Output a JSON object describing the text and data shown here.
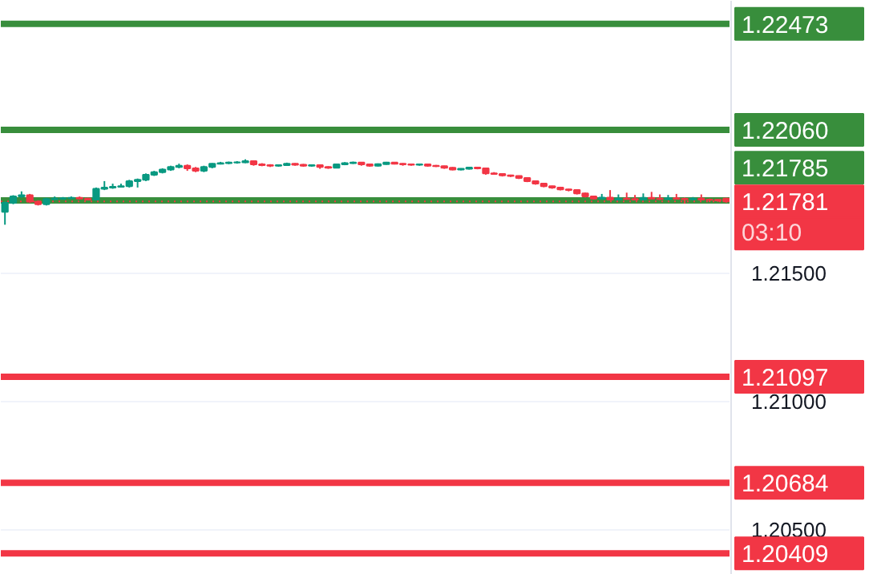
{
  "chart_data": {
    "type": "candlestick",
    "categories": [
      null,
      null,
      null,
      null,
      null,
      null,
      null,
      null,
      null,
      null,
      null,
      null,
      null,
      null,
      null,
      null,
      null,
      null,
      null,
      null,
      null,
      null,
      null,
      null,
      null,
      null,
      null,
      null,
      null,
      null,
      null,
      null,
      null,
      null,
      null,
      null,
      null,
      null,
      null,
      null,
      null,
      null,
      null,
      null,
      null,
      null,
      null,
      null,
      null,
      null,
      null,
      null,
      null,
      null,
      null,
      null,
      null,
      null,
      null,
      null,
      null,
      null,
      null,
      null,
      null,
      null,
      null,
      null,
      null,
      null,
      null,
      null,
      null,
      null,
      null,
      null,
      null,
      null,
      null,
      null,
      null,
      null,
      null,
      null,
      null,
      null,
      null,
      null
    ],
    "ohlc": [
      [
        1.2174,
        1.2178,
        1.2169,
        1.21775
      ],
      [
        1.21775,
        1.21805,
        1.2177,
        1.218
      ],
      [
        1.218,
        1.2182,
        1.21795,
        1.21805
      ],
      [
        1.21805,
        1.2181,
        1.21775,
        1.2178
      ],
      [
        1.2178,
        1.21785,
        1.21765,
        1.2177
      ],
      [
        1.2177,
        1.21795,
        1.21765,
        1.2179
      ],
      [
        1.2179,
        1.218,
        1.21785,
        1.21792
      ],
      [
        1.21792,
        1.21798,
        1.21788,
        1.21793
      ],
      [
        1.21793,
        1.218,
        1.2179,
        1.21795
      ],
      [
        1.21795,
        1.218,
        1.21788,
        1.21792
      ],
      [
        1.21792,
        1.21795,
        1.21785,
        1.21788
      ],
      [
        1.21788,
        1.21835,
        1.21785,
        1.2183
      ],
      [
        1.2183,
        1.2186,
        1.21825,
        1.21835
      ],
      [
        1.21835,
        1.2185,
        1.2183,
        1.21838
      ],
      [
        1.21838,
        1.2185,
        1.21835,
        1.2184
      ],
      [
        1.2184,
        1.21865,
        1.21835,
        1.2186
      ],
      [
        1.2186,
        1.2187,
        1.21835,
        1.21865
      ],
      [
        1.21865,
        1.2189,
        1.2186,
        1.21885
      ],
      [
        1.21885,
        1.219,
        1.2188,
        1.21895
      ],
      [
        1.21895,
        1.2191,
        1.2189,
        1.21905
      ],
      [
        1.21905,
        1.2192,
        1.219,
        1.21915
      ],
      [
        1.21915,
        1.21928,
        1.2191,
        1.2192
      ],
      [
        1.2192,
        1.21925,
        1.219,
        1.2191
      ],
      [
        1.2191,
        1.21915,
        1.21895,
        1.219
      ],
      [
        1.219,
        1.2192,
        1.21895,
        1.21915
      ],
      [
        1.21915,
        1.2193,
        1.2191,
        1.21928
      ],
      [
        1.21928,
        1.21935,
        1.21925,
        1.2193
      ],
      [
        1.2193,
        1.21936,
        1.21926,
        1.21932
      ],
      [
        1.21932,
        1.21938,
        1.21928,
        1.21933
      ],
      [
        1.21933,
        1.21945,
        1.2193,
        1.21938
      ],
      [
        1.21938,
        1.2194,
        1.2192,
        1.21925
      ],
      [
        1.21925,
        1.2193,
        1.21918,
        1.21922
      ],
      [
        1.21922,
        1.21926,
        1.21915,
        1.2192
      ],
      [
        1.2192,
        1.21925,
        1.21916,
        1.21922
      ],
      [
        1.21922,
        1.21932,
        1.2192,
        1.21928
      ],
      [
        1.21928,
        1.2193,
        1.2192,
        1.21924
      ],
      [
        1.21924,
        1.21927,
        1.21916,
        1.2192
      ],
      [
        1.2192,
        1.21925,
        1.21916,
        1.21922
      ],
      [
        1.21922,
        1.21925,
        1.21908,
        1.21915
      ],
      [
        1.21915,
        1.21918,
        1.21908,
        1.21912
      ],
      [
        1.21912,
        1.21928,
        1.2191,
        1.21925
      ],
      [
        1.21925,
        1.21934,
        1.21922,
        1.2193
      ],
      [
        1.2193,
        1.21936,
        1.21927,
        1.21932
      ],
      [
        1.21932,
        1.21934,
        1.2192,
        1.21925
      ],
      [
        1.21925,
        1.21928,
        1.21916,
        1.2192
      ],
      [
        1.2192,
        1.21929,
        1.21917,
        1.21926
      ],
      [
        1.21926,
        1.21935,
        1.21924,
        1.21932
      ],
      [
        1.21932,
        1.21934,
        1.21925,
        1.21928
      ],
      [
        1.21928,
        1.2193,
        1.2192,
        1.21925
      ],
      [
        1.21925,
        1.21928,
        1.2192,
        1.21924
      ],
      [
        1.21924,
        1.21928,
        1.2192,
        1.21925
      ],
      [
        1.21925,
        1.21927,
        1.21916,
        1.2192
      ],
      [
        1.2192,
        1.21923,
        1.21915,
        1.21918
      ],
      [
        1.21918,
        1.2192,
        1.21908,
        1.21912
      ],
      [
        1.21912,
        1.21915,
        1.21902,
        1.21905
      ],
      [
        1.21905,
        1.2191,
        1.21902,
        1.21908
      ],
      [
        1.21908,
        1.21916,
        1.21905,
        1.21913
      ],
      [
        1.21913,
        1.21915,
        1.21906,
        1.2191
      ],
      [
        1.2191,
        1.21912,
        1.21885,
        1.2189
      ],
      [
        1.2189,
        1.21895,
        1.21885,
        1.21888
      ],
      [
        1.21888,
        1.2189,
        1.21878,
        1.21882
      ],
      [
        1.21882,
        1.21885,
        1.21876,
        1.2188
      ],
      [
        1.2188,
        1.21882,
        1.21868,
        1.21872
      ],
      [
        1.21872,
        1.21875,
        1.21856,
        1.2186
      ],
      [
        1.2186,
        1.21862,
        1.21846,
        1.2185
      ],
      [
        1.2185,
        1.21852,
        1.21836,
        1.2184
      ],
      [
        1.2184,
        1.21842,
        1.2183,
        1.21835
      ],
      [
        1.21835,
        1.21838,
        1.21824,
        1.21828
      ],
      [
        1.21828,
        1.2183,
        1.2182,
        1.21825
      ],
      [
        1.21825,
        1.21828,
        1.21808,
        1.21812
      ],
      [
        1.21812,
        1.21815,
        1.21796,
        1.218
      ],
      [
        1.218,
        1.21803,
        1.21788,
        1.21792
      ],
      [
        1.21792,
        1.2181,
        1.2179,
        1.21796
      ],
      [
        1.21796,
        1.21825,
        1.21785,
        1.21788
      ],
      [
        1.21788,
        1.21808,
        1.21785,
        1.21792
      ],
      [
        1.21792,
        1.21815,
        1.21788,
        1.2179
      ],
      [
        1.2179,
        1.21806,
        1.21786,
        1.21788
      ],
      [
        1.21788,
        1.21812,
        1.21785,
        1.21795
      ],
      [
        1.21795,
        1.21818,
        1.2179,
        1.21792
      ],
      [
        1.21792,
        1.21808,
        1.21786,
        1.2179
      ],
      [
        1.2179,
        1.21806,
        1.21786,
        1.21793
      ],
      [
        1.21793,
        1.2181,
        1.21788,
        1.21791
      ],
      [
        1.21791,
        1.21796,
        1.21772,
        1.21789
      ],
      [
        1.21789,
        1.21798,
        1.21785,
        1.21792
      ],
      [
        1.21792,
        1.21808,
        1.21786,
        1.21788
      ],
      [
        1.21788,
        1.21792,
        1.21778,
        1.21787
      ],
      [
        1.21787,
        1.2179,
        1.21779,
        1.21785
      ],
      [
        1.21792,
        1.21795,
        1.21776,
        1.21781
      ]
    ],
    "ylim": [
      1.20325,
      1.22563
    ],
    "yticks": [
      {
        "value": 1.205,
        "label": "1.20500"
      },
      {
        "value": 1.21,
        "label": "1.21000"
      },
      {
        "value": 1.215,
        "label": "1.21500"
      }
    ],
    "tick_labels": "y",
    "grid": "y",
    "ref_lines": [
      {
        "axis": "y",
        "value": 1.22473,
        "label": "1.22473",
        "color": "#388e3c"
      },
      {
        "axis": "y",
        "value": 1.2206,
        "label": "1.22060",
        "color": "#388e3c"
      },
      {
        "axis": "y",
        "value": 1.21785,
        "label": "1.21785",
        "color": "#388e3c"
      },
      {
        "axis": "y",
        "value": 1.21781,
        "label": "1.21781",
        "color": "#f23645",
        "line_style": "dotted"
      },
      {
        "axis": "y",
        "value": 1.21097,
        "label": "1.21097",
        "color": "#f23645"
      },
      {
        "axis": "y",
        "value": 1.20684,
        "label": "1.20684",
        "color": "#f23645"
      },
      {
        "axis": "y",
        "value": 1.20409,
        "label": "1.20409",
        "color": "#f23645"
      }
    ],
    "annotations": [
      "03:10"
    ]
  }
}
